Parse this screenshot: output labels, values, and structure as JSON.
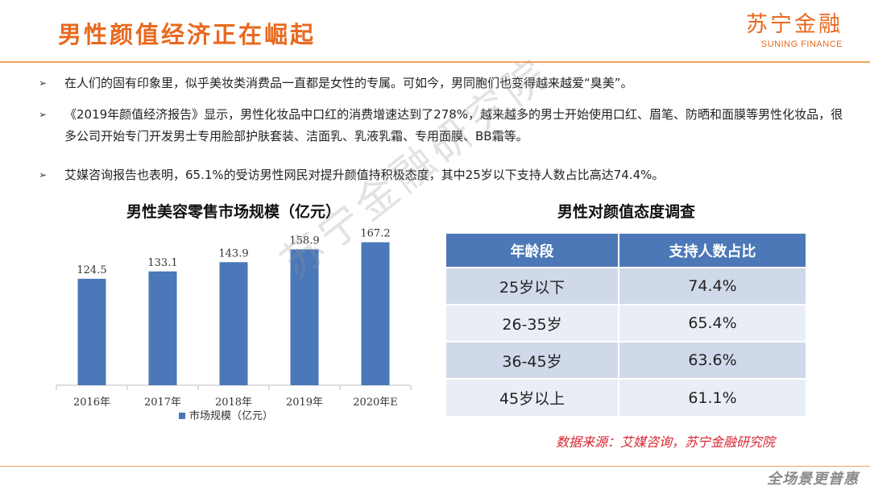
{
  "title": "男性颜值经济正在崛起",
  "brand": {
    "name": "苏宁金融",
    "name_en": "SUNING FINANCE"
  },
  "bullets": [
    "在人们的固有印象里，似乎美妆类消费品一直都是女性的专属。可如今，男同胞们也变得越来越爱“臭美”。",
    "《2019年颜值经济报告》显示，男性化妆品中口红的消费增速达到了278%，越来越多的男士开始使用口红、眉笔、防晒和面膜等男性化妆品，很多公司开始专门开发男士专用脸部护肤套装、洁面乳、乳液乳霜、专用面膜、BB霜等。",
    "艾媒咨询报告也表明，65.1%的受访男性网民对提升颜值持积极态度，其中25岁以下支持人数占比高达74.4%。"
  ],
  "bullet_icon": "arrow-bullet-icon",
  "chart_data": [
    {
      "type": "bar",
      "title": "男性美容零售市场规模（亿元）",
      "categories": [
        "2016年",
        "2017年",
        "2018年",
        "2019年",
        "2020年E"
      ],
      "series": [
        {
          "name": "市场规模（亿元）",
          "values": [
            124.5,
            133.1,
            143.9,
            158.9,
            167.2
          ]
        }
      ],
      "ylim": [
        0,
        180
      ],
      "grid": false,
      "legend": "bottom",
      "bar_color": "#4a78b9"
    },
    {
      "type": "table",
      "title": "男性对颜值态度调查",
      "columns": [
        "年龄段",
        "支持人数占比"
      ],
      "rows": [
        [
          "25岁以下",
          "74.4%"
        ],
        [
          "26-35岁",
          "65.4%"
        ],
        [
          "36-45岁",
          "63.6%"
        ],
        [
          "45岁以上",
          "61.1%"
        ]
      ]
    }
  ],
  "source": "数据来源：艾媒咨询，苏宁金融研究院",
  "watermark": "苏宁金融研究院",
  "footer_logo": "全场景更普惠",
  "colors": {
    "accent": "#e8691f",
    "table_header": "#4c78b7",
    "source_text": "#d8262f"
  }
}
